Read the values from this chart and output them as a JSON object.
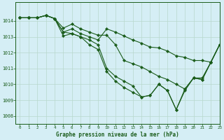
{
  "title": "Graphe pression niveau de la mer (hPa)",
  "background_color": "#d5eef5",
  "grid_color": "#b8d8cc",
  "line_color": "#1a5c1a",
  "xlim": [
    -0.5,
    23
  ],
  "ylim": [
    1007.5,
    1015.2
  ],
  "yticks": [
    1008,
    1009,
    1010,
    1011,
    1012,
    1013,
    1014
  ],
  "xticks": [
    0,
    1,
    2,
    3,
    4,
    5,
    6,
    7,
    8,
    9,
    10,
    11,
    12,
    13,
    14,
    15,
    16,
    17,
    18,
    19,
    20,
    21,
    22,
    23
  ],
  "series": [
    {
      "x": [
        0,
        1,
        2,
        3,
        4,
        5,
        6,
        7,
        8,
        9,
        10,
        11,
        12,
        13,
        14,
        15,
        16,
        17,
        18,
        19,
        20,
        21,
        22,
        23
      ],
      "y": [
        1014.2,
        1014.2,
        1014.2,
        1014.35,
        1014.15,
        1013.3,
        1013.5,
        1013.2,
        1013.0,
        1012.8,
        1013.5,
        1013.3,
        1013.05,
        1012.8,
        1012.6,
        1012.35,
        1012.3,
        1012.1,
        1011.8,
        1011.7,
        1011.5,
        1011.5,
        1011.4,
        1012.5
      ]
    },
    {
      "x": [
        0,
        1,
        2,
        3,
        4,
        5,
        6,
        7,
        8,
        9,
        10,
        11,
        12,
        13,
        14,
        15,
        16,
        17,
        18,
        19,
        20,
        21,
        22,
        23
      ],
      "y": [
        1014.2,
        1014.2,
        1014.2,
        1014.35,
        1014.15,
        1013.55,
        1013.8,
        1013.5,
        1013.3,
        1013.1,
        1013.1,
        1012.5,
        1011.5,
        1011.3,
        1011.1,
        1010.8,
        1010.5,
        1010.3,
        1010.0,
        1009.7,
        1010.4,
        1010.3,
        1011.4,
        1012.5
      ]
    },
    {
      "x": [
        0,
        1,
        2,
        3,
        4,
        5,
        6,
        7,
        8,
        9,
        10,
        11,
        12,
        13,
        14,
        15,
        16,
        17,
        18,
        19,
        20,
        21,
        22,
        23
      ],
      "y": [
        1014.2,
        1014.2,
        1014.2,
        1014.35,
        1014.15,
        1013.05,
        1013.2,
        1013.0,
        1012.8,
        1012.5,
        1011.0,
        1010.5,
        1010.2,
        1009.9,
        1009.2,
        1009.3,
        1010.0,
        1009.6,
        1008.4,
        1009.7,
        1010.4,
        1010.4,
        1011.4,
        1012.5
      ]
    },
    {
      "x": [
        0,
        1,
        2,
        3,
        4,
        5,
        6,
        7,
        8,
        9,
        10,
        11,
        12,
        13,
        14,
        15,
        16,
        17,
        18,
        19,
        20,
        21,
        22,
        23
      ],
      "y": [
        1014.2,
        1014.2,
        1014.2,
        1014.35,
        1014.15,
        1013.3,
        1013.2,
        1013.0,
        1012.5,
        1012.2,
        1010.8,
        1010.2,
        1009.8,
        1009.5,
        1009.2,
        1009.3,
        1010.0,
        1009.6,
        1008.4,
        1009.6,
        1010.4,
        1010.3,
        1011.4,
        1012.5
      ]
    }
  ]
}
